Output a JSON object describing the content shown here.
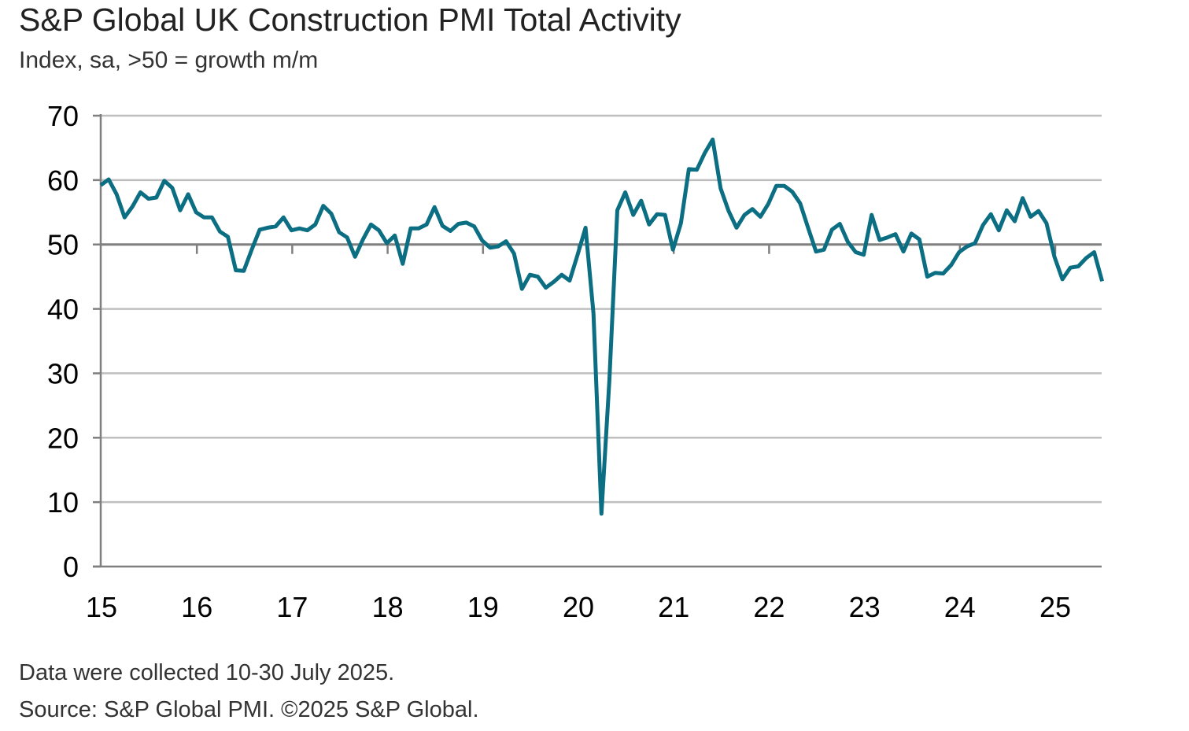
{
  "header": {
    "title": "S&P Global UK Construction PMI Total Activity",
    "subtitle": "Index, sa, >50 = growth m/m"
  },
  "footer": {
    "note": "Data were collected 10-30 July 2025.",
    "source": "Source: S&P Global PMI. ©2025 S&P Global."
  },
  "chart_data": {
    "type": "line",
    "title": "S&P Global UK Construction PMI Total Activity",
    "ylabel": "Index, sa, >50 = growth m/m",
    "ylim": [
      0,
      70
    ],
    "yticks": [
      "0",
      "10",
      "20",
      "30",
      "40",
      "50",
      "60",
      "70"
    ],
    "xticks": [
      "15",
      "16",
      "17",
      "18",
      "19",
      "20",
      "21",
      "22",
      "23",
      "24",
      "25"
    ],
    "x_start": "2015-01",
    "x_end": "2025-07",
    "reference_line": 50,
    "grid": true,
    "line_color": "#0b6e82",
    "grid_color": "#bfbfbf",
    "series": [
      {
        "values": [
          59.2,
          60.1,
          57.8,
          54.2,
          55.9,
          58.1,
          57.1,
          57.3,
          59.9,
          58.8,
          55.3,
          57.8,
          55.0,
          54.2,
          54.2,
          52.0,
          51.2,
          46.0,
          45.9,
          49.2,
          52.3,
          52.6,
          52.8,
          54.2,
          52.2,
          52.5,
          52.2,
          53.1,
          56.0,
          54.8,
          51.9,
          51.1,
          48.1,
          50.8,
          53.1,
          52.2,
          50.2,
          51.4,
          47.0,
          52.5,
          52.5,
          53.1,
          55.8,
          52.9,
          52.1,
          53.2,
          53.4,
          52.8,
          50.6,
          49.5,
          49.7,
          50.5,
          48.6,
          43.1,
          45.3,
          45.0,
          43.3,
          44.2,
          45.3,
          44.4,
          48.4,
          52.6,
          39.3,
          8.2,
          28.9,
          55.3,
          58.1,
          54.6,
          56.8,
          53.1,
          54.7,
          54.6,
          49.2,
          53.3,
          61.7,
          61.6,
          64.2,
          66.3,
          58.7,
          55.2,
          52.6,
          54.6,
          55.5,
          54.3,
          56.3,
          59.1,
          59.1,
          58.2,
          56.4,
          52.6,
          48.9,
          49.2,
          52.3,
          53.2,
          50.4,
          48.8,
          48.4,
          54.6,
          50.7,
          51.1,
          51.6,
          48.9,
          51.7,
          50.8,
          45.0,
          45.6,
          45.5,
          46.8,
          48.8,
          49.7,
          50.2,
          53.0,
          54.7,
          52.2,
          55.3,
          53.6,
          57.2,
          54.3,
          55.2,
          53.3,
          48.1,
          44.6,
          46.4,
          46.6,
          47.9,
          48.8,
          44.3
        ]
      }
    ]
  }
}
